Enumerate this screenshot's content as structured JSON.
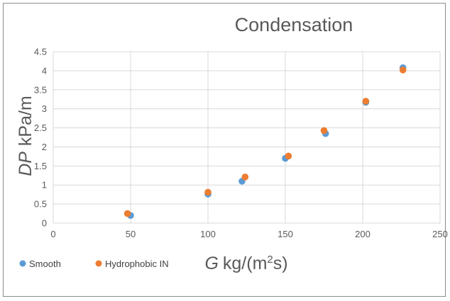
{
  "chart_data": {
    "type": "scatter",
    "title": "Condensation",
    "xlabel": {
      "symbol": "G",
      "unit_prefix": "kg/(m",
      "unit_sup": "2",
      "unit_suffix": "s)"
    },
    "ylabel": {
      "symbol": "DP",
      "unit": "kPa/m"
    },
    "xlim": [
      0,
      250
    ],
    "ylim": [
      0,
      4.5
    ],
    "xticks": [
      "0",
      "50",
      "100",
      "150",
      "200",
      "250"
    ],
    "yticks": [
      "0",
      "0.5",
      "1",
      "1.5",
      "2",
      "2.5",
      "3",
      "3.5",
      "4",
      "4.5"
    ],
    "grid": "major both",
    "legend_position": "bottom-left",
    "series": [
      {
        "name": "Smooth",
        "color": "#5b9bd5",
        "points": [
          {
            "x": 50,
            "y": 0.2
          },
          {
            "x": 100,
            "y": 0.76
          },
          {
            "x": 122,
            "y": 1.1
          },
          {
            "x": 150,
            "y": 1.7
          },
          {
            "x": 176,
            "y": 2.35
          },
          {
            "x": 202,
            "y": 3.17
          },
          {
            "x": 226,
            "y": 4.08
          }
        ]
      },
      {
        "name": "Hydrophobic IN",
        "color": "#ed7d31",
        "points": [
          {
            "x": 48,
            "y": 0.25
          },
          {
            "x": 100,
            "y": 0.81
          },
          {
            "x": 124,
            "y": 1.21
          },
          {
            "x": 152,
            "y": 1.76
          },
          {
            "x": 175,
            "y": 2.43
          },
          {
            "x": 202,
            "y": 3.2
          },
          {
            "x": 226,
            "y": 4.02
          }
        ]
      }
    ]
  }
}
